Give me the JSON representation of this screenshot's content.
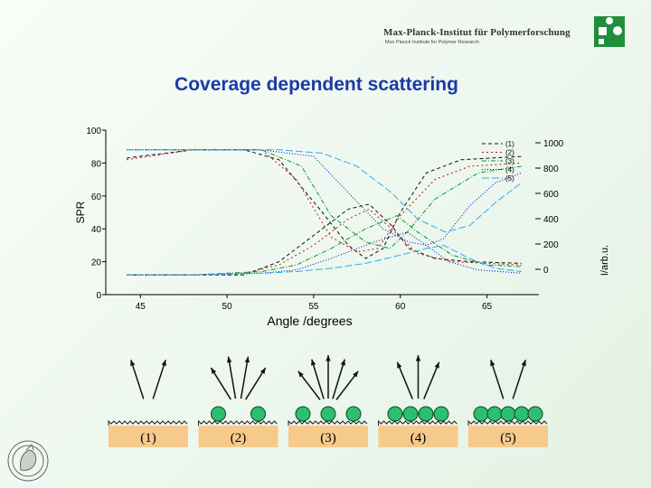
{
  "header": {
    "institute_name": "Max-Planck-Institut für Polymerforschung",
    "institute_sub": "Max Planck Institute for Polymer Research",
    "logo_icon": "mpip-puzzle-logo-icon",
    "seal_icon": "minerva-seal-icon"
  },
  "slide": {
    "title": "Coverage dependent scattering"
  },
  "chart_data": {
    "type": "line",
    "xlabel": "Angle /degrees",
    "ylabel_left": "SPR",
    "ylabel_right": "I/arb.u.",
    "xlim": [
      43,
      68
    ],
    "ylim_left": [
      0,
      100
    ],
    "ylim_right": [
      -200,
      1100
    ],
    "x_ticks": [
      "45",
      "50",
      "55",
      "60",
      "65"
    ],
    "y_left_ticks": [
      "0",
      "20",
      "40",
      "60",
      "80",
      "100"
    ],
    "y_right_ticks": [
      "0",
      "200",
      "400",
      "600",
      "800",
      "1000"
    ],
    "legend": [
      "(1)",
      "(2)",
      "(3)",
      "(4)",
      "(5)"
    ],
    "series": [
      {
        "name": "(1)",
        "color": "#111111",
        "reflectivity": [
          [
            44.2,
            83
          ],
          [
            48,
            88
          ],
          [
            51,
            88
          ],
          [
            53,
            82
          ],
          [
            55.5,
            50
          ],
          [
            57,
            30
          ],
          [
            58,
            22
          ],
          [
            59,
            28
          ],
          [
            60,
            50
          ],
          [
            61.5,
            74
          ],
          [
            63.5,
            82
          ],
          [
            67,
            84
          ]
        ],
        "scattering": [
          [
            44.2,
            12
          ],
          [
            48,
            12
          ],
          [
            51,
            12
          ],
          [
            53,
            20
          ],
          [
            55,
            36
          ],
          [
            57,
            52
          ],
          [
            58.2,
            55
          ],
          [
            59.5,
            42
          ],
          [
            60.5,
            28
          ],
          [
            62,
            22
          ],
          [
            64,
            20
          ],
          [
            67,
            19
          ]
        ]
      },
      {
        "name": "(2)",
        "color": "#cc1111",
        "reflectivity": [
          [
            44.2,
            82
          ],
          [
            48,
            88
          ],
          [
            52,
            88
          ],
          [
            54,
            70
          ],
          [
            56,
            35
          ],
          [
            57.5,
            26
          ],
          [
            58.7,
            28
          ],
          [
            60,
            48
          ],
          [
            62,
            70
          ],
          [
            64,
            78
          ],
          [
            67,
            80
          ]
        ],
        "scattering": [
          [
            44.2,
            12
          ],
          [
            48,
            12
          ],
          [
            51,
            13
          ],
          [
            53,
            18
          ],
          [
            55,
            30
          ],
          [
            57,
            46
          ],
          [
            58.2,
            52
          ],
          [
            59.5,
            40
          ],
          [
            61,
            25
          ],
          [
            63,
            20
          ],
          [
            67,
            18
          ]
        ]
      },
      {
        "name": "(3)",
        "color": "#009933",
        "reflectivity": [
          [
            44.2,
            88
          ],
          [
            48,
            88
          ],
          [
            52,
            88
          ],
          [
            54.3,
            78
          ],
          [
            56,
            48
          ],
          [
            58,
            32
          ],
          [
            59.4,
            28
          ],
          [
            60.4,
            38
          ],
          [
            62,
            58
          ],
          [
            64.5,
            74
          ],
          [
            67,
            78
          ]
        ],
        "scattering": [
          [
            44.2,
            12
          ],
          [
            48,
            12
          ],
          [
            52,
            14
          ],
          [
            54,
            18
          ],
          [
            56,
            28
          ],
          [
            58,
            40
          ],
          [
            59.8,
            48
          ],
          [
            61,
            38
          ],
          [
            63,
            24
          ],
          [
            65,
            18
          ],
          [
            67,
            17
          ]
        ]
      },
      {
        "name": "(4)",
        "color": "#0000cc",
        "reflectivity": [
          [
            44.2,
            88
          ],
          [
            48,
            88
          ],
          [
            52,
            88
          ],
          [
            55,
            84
          ],
          [
            57,
            62
          ],
          [
            59,
            40
          ],
          [
            60.5,
            32
          ],
          [
            61.5,
            30
          ],
          [
            62.5,
            34
          ],
          [
            64,
            54
          ],
          [
            65.5,
            68
          ],
          [
            67,
            74
          ]
        ],
        "scattering": [
          [
            44.2,
            12
          ],
          [
            48,
            12
          ],
          [
            52,
            13
          ],
          [
            54,
            15
          ],
          [
            56,
            22
          ],
          [
            58.5,
            32
          ],
          [
            60.4,
            38
          ],
          [
            61.5,
            30
          ],
          [
            62.8,
            20
          ],
          [
            64.5,
            15
          ],
          [
            67,
            13
          ]
        ]
      },
      {
        "name": "(5)",
        "color": "#33aaee",
        "reflectivity": [
          [
            44.2,
            88
          ],
          [
            48,
            88
          ],
          [
            53,
            88
          ],
          [
            55.5,
            86
          ],
          [
            57.5,
            78
          ],
          [
            59.5,
            62
          ],
          [
            61,
            46
          ],
          [
            62.6,
            38
          ],
          [
            64,
            42
          ],
          [
            65.5,
            56
          ],
          [
            67,
            68
          ]
        ],
        "scattering": [
          [
            44.2,
            12
          ],
          [
            48,
            12
          ],
          [
            52,
            13
          ],
          [
            54,
            14
          ],
          [
            56,
            16
          ],
          [
            58,
            19
          ],
          [
            60,
            24
          ],
          [
            61.5,
            28
          ],
          [
            62.5,
            30
          ],
          [
            64,
            22
          ],
          [
            65.5,
            16
          ],
          [
            67,
            14
          ]
        ]
      }
    ]
  },
  "diagram": {
    "panels": [
      {
        "label": "(1)",
        "particles": 0,
        "arrows": 2
      },
      {
        "label": "(2)",
        "particles": 2,
        "arrows": 4
      },
      {
        "label": "(3)",
        "particles": 3,
        "arrows": 5
      },
      {
        "label": "(4)",
        "particles": 4,
        "arrows": 3
      },
      {
        "label": "(5)",
        "particles": 5,
        "arrows": 2
      }
    ],
    "substrate_color": "#f6ca8c",
    "particle_color": "#2bbf72"
  }
}
